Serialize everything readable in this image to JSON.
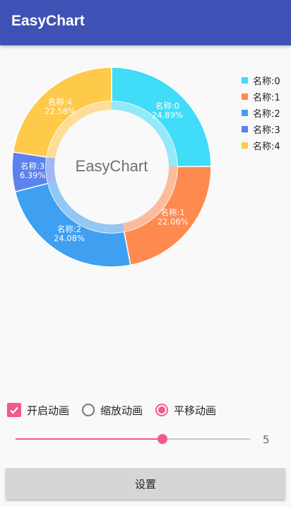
{
  "appbar": {
    "title": "EasyChart"
  },
  "chart_data": {
    "type": "pie",
    "center_text": "EasyChart",
    "categories": [
      "名称:0",
      "名称:1",
      "名称:2",
      "名称:3",
      "名称:4"
    ],
    "values": [
      24.89,
      22.06,
      24.08,
      6.39,
      22.58
    ],
    "value_labels": [
      "24.89%",
      "22.06%",
      "24.08%",
      "6.39%",
      "22.58%"
    ],
    "colors": [
      "#40dcf8",
      "#ff8a4f",
      "#3f9ff0",
      "#5b82ee",
      "#ffc94a"
    ],
    "legend": {
      "position": "top-right"
    }
  },
  "legend": {
    "items": [
      {
        "label": "名称:0",
        "color": "#40dcf8"
      },
      {
        "label": "名称:1",
        "color": "#ff8a4f"
      },
      {
        "label": "名称:2",
        "color": "#3f9ff0"
      },
      {
        "label": "名称:3",
        "color": "#5b82ee"
      },
      {
        "label": "名称:4",
        "color": "#ffc94a"
      }
    ]
  },
  "controls": {
    "enable_animation": {
      "label": "开启动画",
      "checked": true
    },
    "scale_animation": {
      "label": "缩放动画",
      "selected": false
    },
    "translate_animation": {
      "label": "平移动画",
      "selected": true
    }
  },
  "slider": {
    "value": 5,
    "value_label": "5",
    "max": 8
  },
  "action": {
    "set_label": "设置"
  },
  "colors": {
    "primary": "#3f51b5",
    "accent": "#f25a8b"
  }
}
